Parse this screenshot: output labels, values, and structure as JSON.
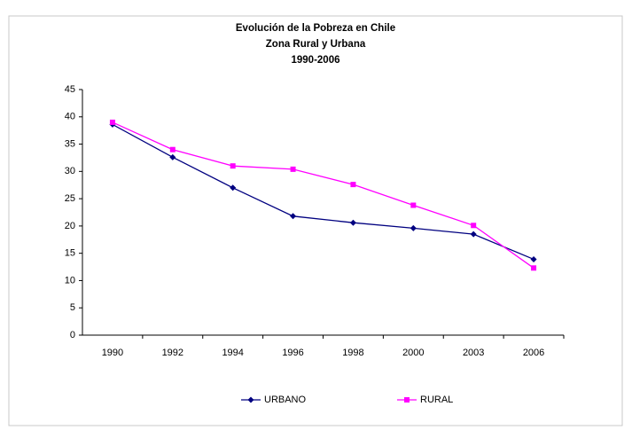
{
  "chart_data": {
    "type": "line",
    "title": "Evolución de la Pobreza en Chile",
    "subtitle": [
      "Zona Rural y Urbana",
      "1990-2006"
    ],
    "categories": [
      "1990",
      "1992",
      "1994",
      "1996",
      "1998",
      "2000",
      "2003",
      "2006"
    ],
    "series": [
      {
        "name": "URBANO",
        "color": "#000080",
        "values": [
          38.6,
          32.6,
          27,
          21.8,
          20.6,
          19.6,
          18.5,
          13.9
        ]
      },
      {
        "name": "RURAL",
        "color": "#ff00ff",
        "values": [
          39,
          34,
          31,
          30.4,
          27.6,
          23.8,
          20.1,
          12.3
        ]
      }
    ],
    "ylim": [
      0,
      45
    ],
    "yticks": [
      0,
      5,
      10,
      15,
      20,
      25,
      30,
      35,
      40,
      45
    ],
    "grid": false,
    "legend": "bottom"
  }
}
